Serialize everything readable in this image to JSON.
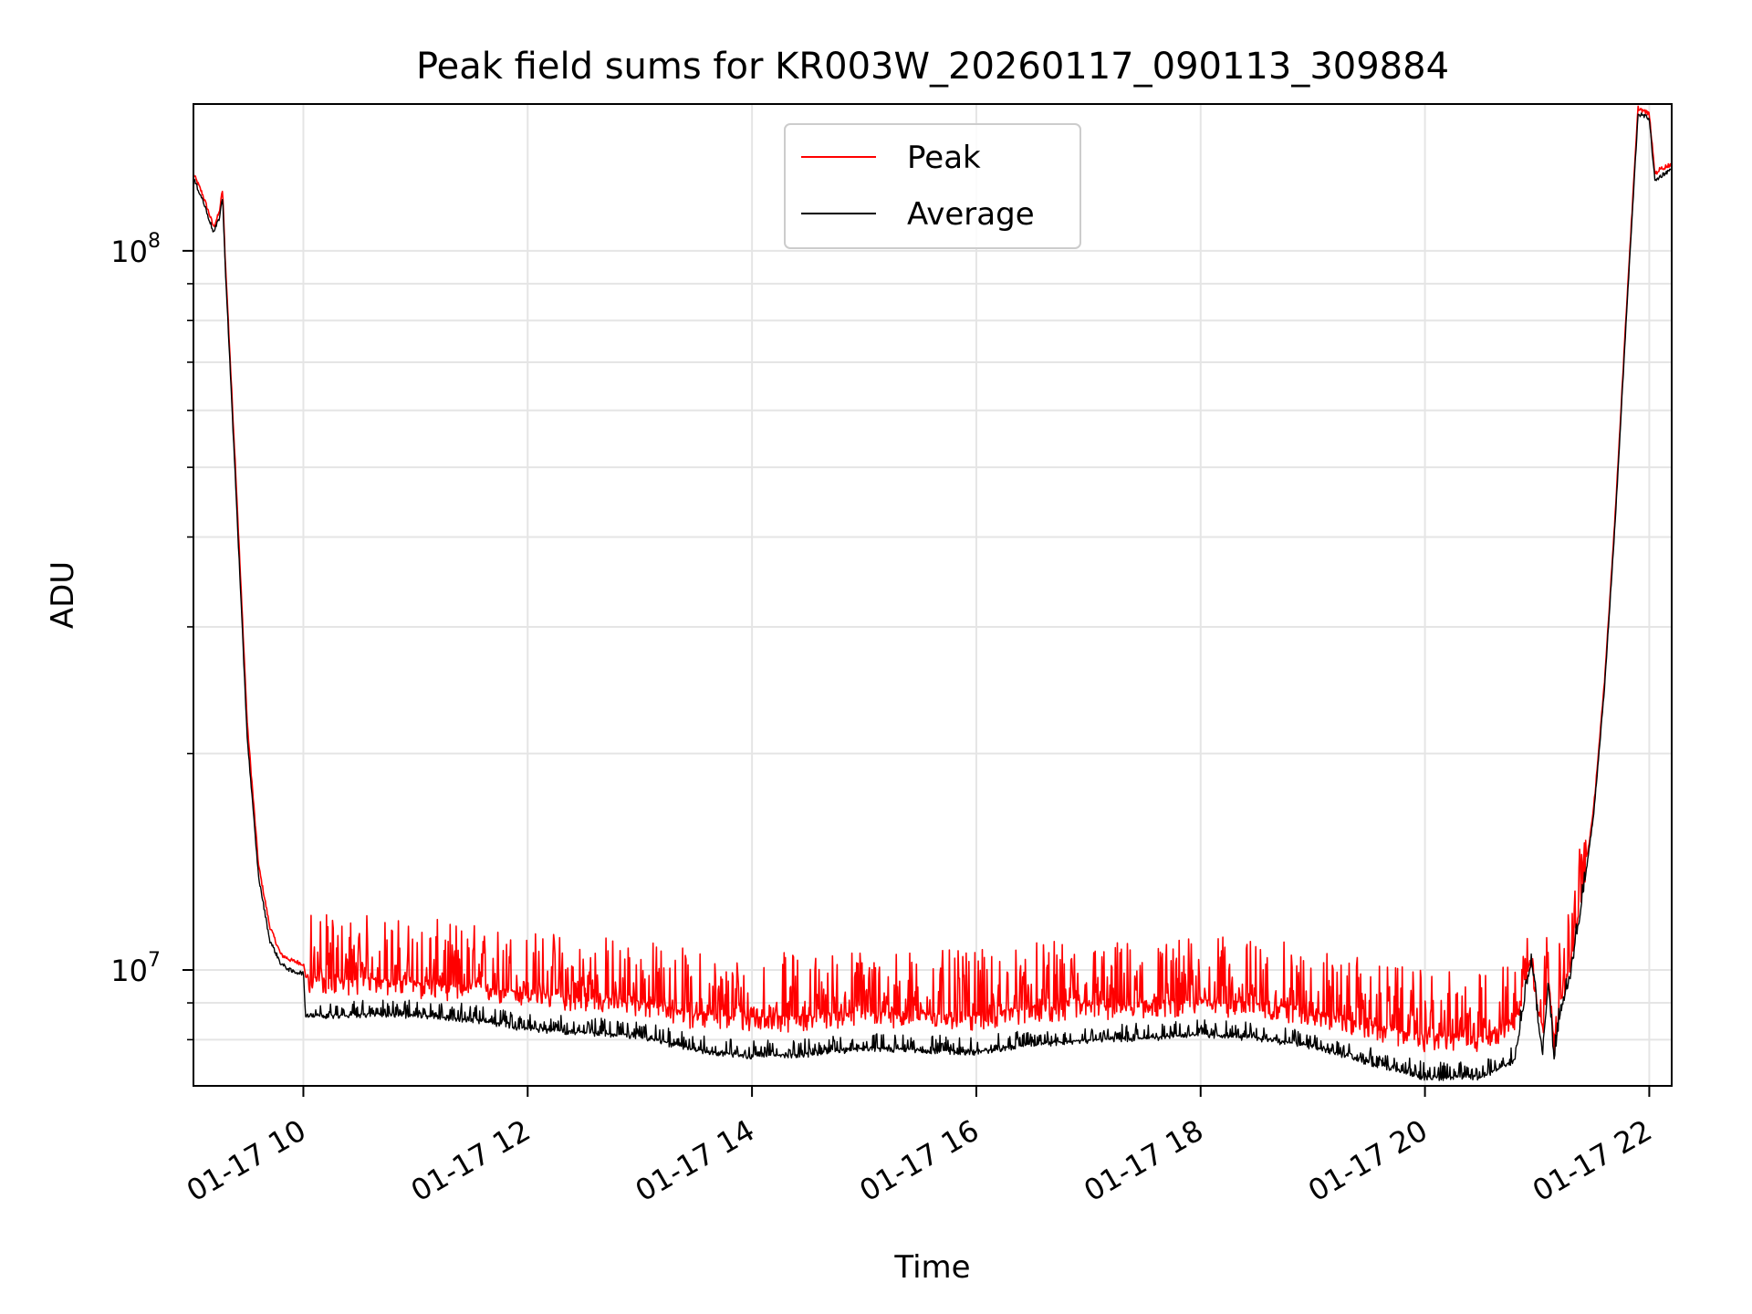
{
  "chart_data": {
    "type": "line",
    "title": "Peak field sums for KR003W_20260117_090113_309884",
    "xlabel": "Time",
    "ylabel": "ADU",
    "yscale": "log",
    "xlim": [
      9.02,
      22.2
    ],
    "ylim": [
      6900000,
      160000000
    ],
    "x_ticks": [
      {
        "value": 10,
        "label": "01-17 10"
      },
      {
        "value": 12,
        "label": "01-17 12"
      },
      {
        "value": 14,
        "label": "01-17 14"
      },
      {
        "value": 16,
        "label": "01-17 16"
      },
      {
        "value": 18,
        "label": "01-17 18"
      },
      {
        "value": 20,
        "label": "01-17 20"
      },
      {
        "value": 22,
        "label": "01-17 22"
      }
    ],
    "y_major_ticks": [
      {
        "value": 10000000,
        "base": "10",
        "exp": "7"
      },
      {
        "value": 100000000,
        "base": "10",
        "exp": "8"
      }
    ],
    "y_minor_ticks": [
      8000000,
      9000000,
      20000000,
      30000000,
      40000000,
      50000000,
      60000000,
      70000000,
      80000000,
      90000000
    ],
    "grid": true,
    "legend": {
      "position": "upper-center"
    },
    "series": [
      {
        "name": "Peak",
        "color": "#ff0000",
        "noise": 0.09,
        "x": [
          9.02,
          9.1,
          9.2,
          9.25,
          9.28,
          9.3,
          9.4,
          9.5,
          9.6,
          9.7,
          9.8,
          9.9,
          10.0,
          10.02,
          10.3,
          10.6,
          11.0,
          11.5,
          12.0,
          12.5,
          13.0,
          13.5,
          14.0,
          14.5,
          15.0,
          15.5,
          16.0,
          16.5,
          17.0,
          17.5,
          18.0,
          18.5,
          19.0,
          19.5,
          20.0,
          20.5,
          20.8,
          20.95,
          21.0,
          21.05,
          21.1,
          21.15,
          21.2,
          21.3,
          21.4,
          21.5,
          21.6,
          21.7,
          21.8,
          21.9,
          22.0,
          22.05,
          22.1,
          22.2
        ],
        "y": [
          128000000,
          120000000,
          108000000,
          113000000,
          122000000,
          100000000,
          48000000,
          22000000,
          14000000,
          11500000,
          10500000,
          10300000,
          10200000,
          9800000,
          9700000,
          9750000,
          9600000,
          9500000,
          9300000,
          9200000,
          9050000,
          8700000,
          8600000,
          8650000,
          8800000,
          8700000,
          8650000,
          8900000,
          8950000,
          9000000,
          9100000,
          9000000,
          8800000,
          8400000,
          8100000,
          8100000,
          8500000,
          10600000,
          9000000,
          8300000,
          9800000,
          8000000,
          8900000,
          10200000,
          12800000,
          16500000,
          25000000,
          44000000,
          85000000,
          158000000,
          155000000,
          128000000,
          130000000,
          132000000
        ]
      },
      {
        "name": "Average",
        "color": "#000000",
        "noise": 0.035,
        "x": [
          9.02,
          9.1,
          9.2,
          9.25,
          9.28,
          9.3,
          9.4,
          9.5,
          9.6,
          9.7,
          9.8,
          9.9,
          10.0,
          10.02,
          10.3,
          10.6,
          11.0,
          11.5,
          12.0,
          12.5,
          13.0,
          13.5,
          14.0,
          14.5,
          15.0,
          15.5,
          16.0,
          16.5,
          17.0,
          17.5,
          18.0,
          18.5,
          19.0,
          19.5,
          20.0,
          20.5,
          20.8,
          20.95,
          21.0,
          21.05,
          21.1,
          21.15,
          21.2,
          21.3,
          21.4,
          21.5,
          21.6,
          21.7,
          21.8,
          21.9,
          22.0,
          22.05,
          22.1,
          22.2
        ],
        "y": [
          126000000,
          118000000,
          106000000,
          111000000,
          119000000,
          98000000,
          46000000,
          21000000,
          13500000,
          11000000,
          10200000,
          9950000,
          9900000,
          8650000,
          8650000,
          8700000,
          8650000,
          8550000,
          8300000,
          8200000,
          8100000,
          7750000,
          7600000,
          7650000,
          7800000,
          7750000,
          7700000,
          7900000,
          8000000,
          8050000,
          8150000,
          8050000,
          7850000,
          7450000,
          7100000,
          7100000,
          7500000,
          10400000,
          8700000,
          7700000,
          9700000,
          7500000,
          8600000,
          9900000,
          12500000,
          16200000,
          24500000,
          43000000,
          83000000,
          155000000,
          153000000,
          125000000,
          127000000,
          130000000
        ]
      }
    ]
  }
}
